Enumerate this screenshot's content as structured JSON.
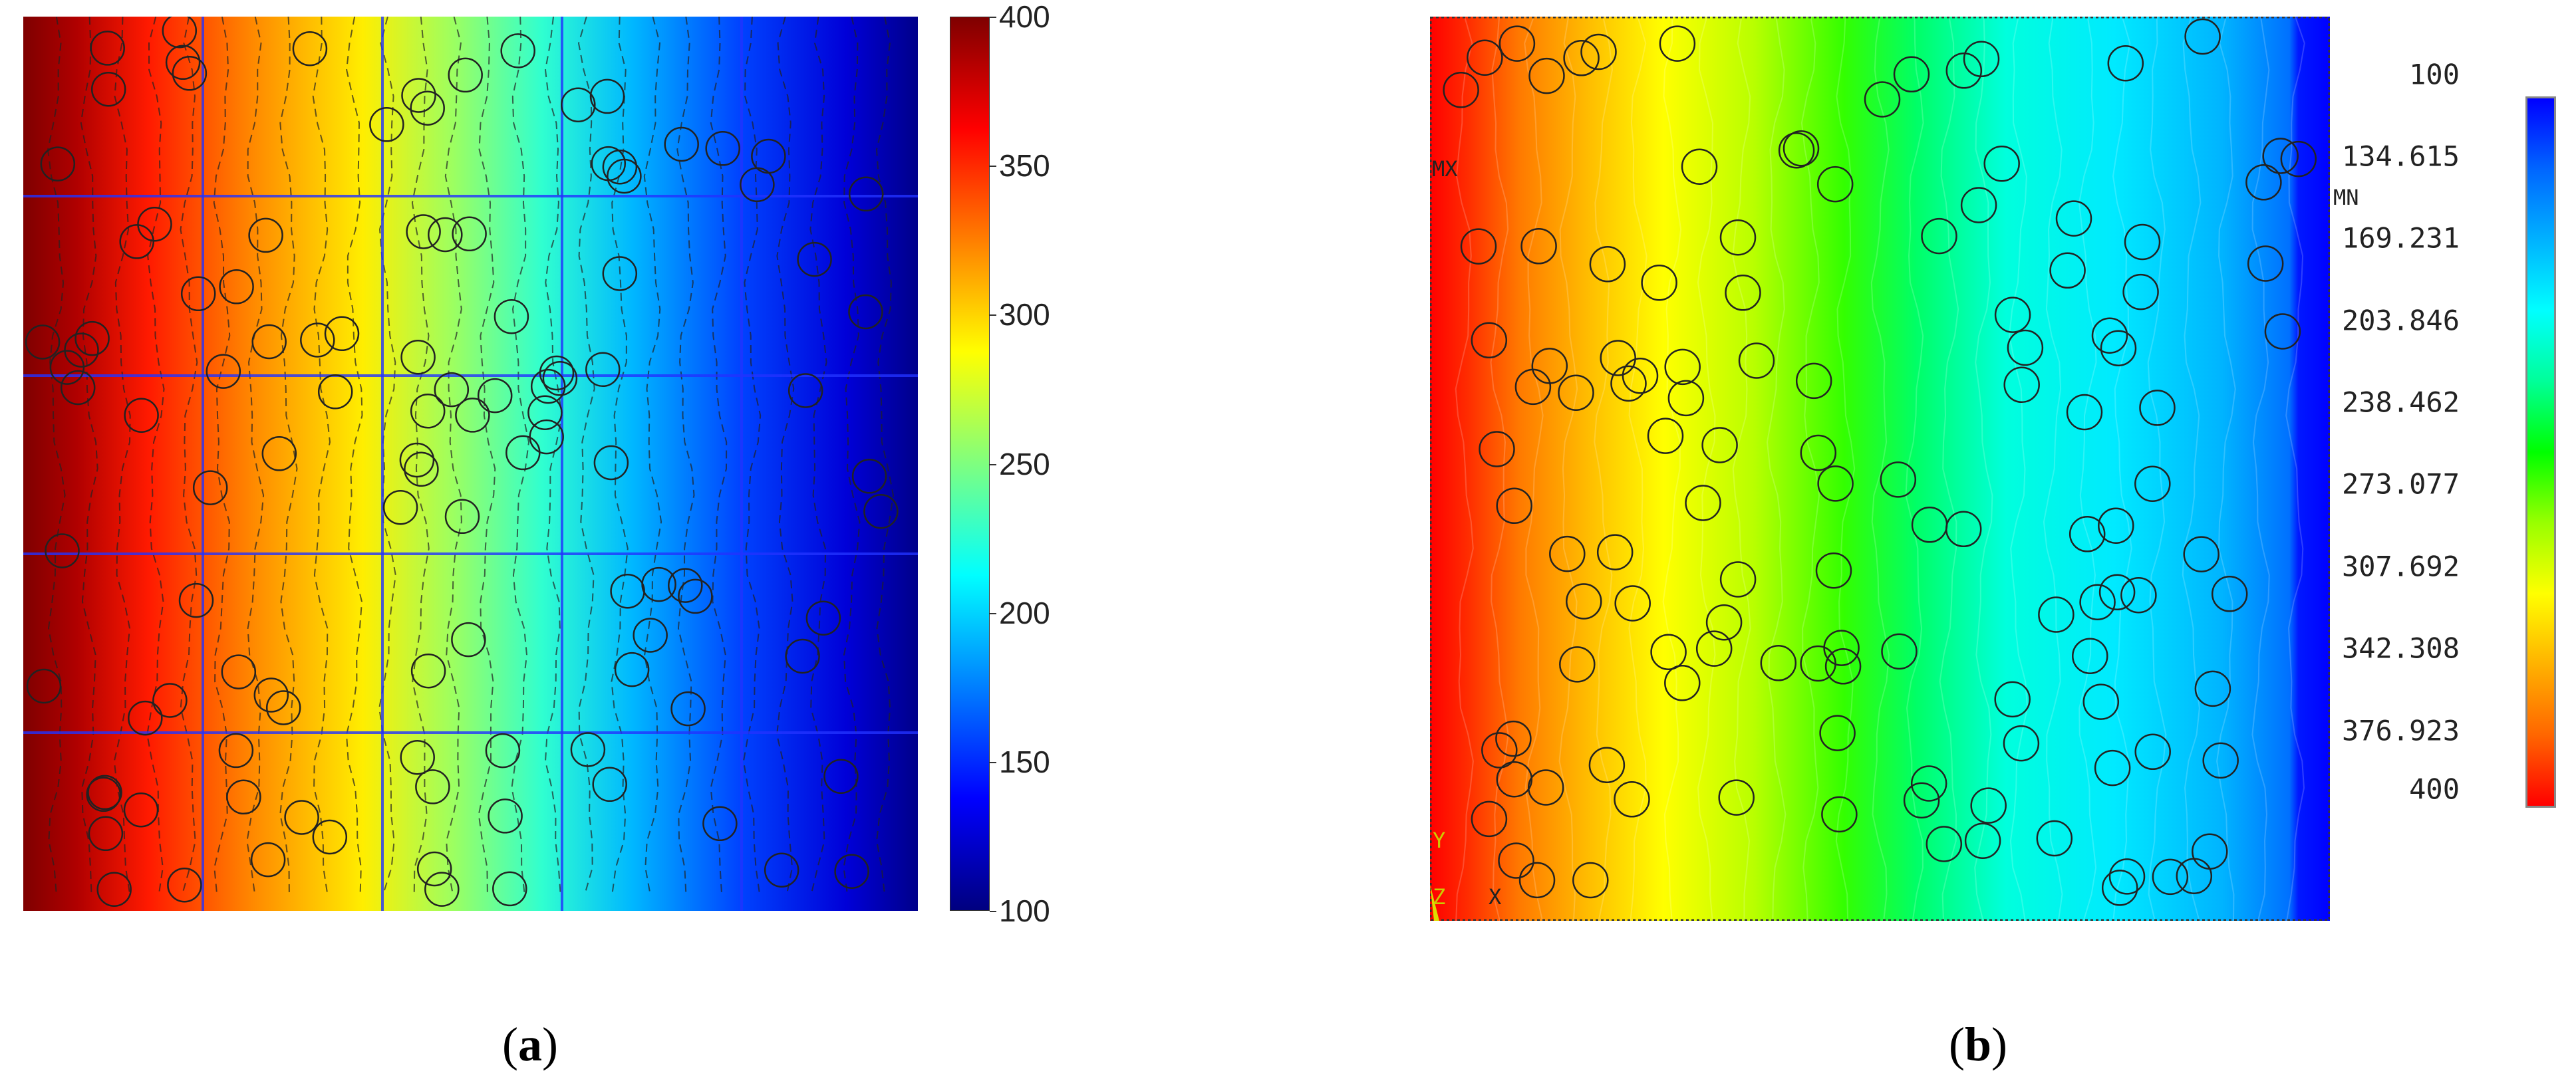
{
  "panel_a": {
    "colorbar_ticks": [
      "400",
      "350",
      "300",
      "250",
      "200",
      "150",
      "100"
    ],
    "caption_letter": "a"
  },
  "panel_b": {
    "colorbar_ticks": [
      "100",
      "134.615",
      "169.231",
      "203.846",
      "238.462",
      "273.077",
      "307.692",
      "342.308",
      "376.923",
      "400"
    ],
    "max_marker": "MX",
    "min_marker": "MN",
    "axis_y": "Y",
    "axis_z": "Z",
    "axis_x": "X",
    "caption_letter": "b"
  },
  "colors": {
    "jet": [
      "#00007f",
      "#0000ff",
      "#007fff",
      "#00ffff",
      "#7fff7f",
      "#ffff00",
      "#ff7f00",
      "#ff0000",
      "#7f0000"
    ],
    "ansys": [
      "#0000ff",
      "#0066ff",
      "#00b2ff",
      "#00ffff",
      "#00ff99",
      "#00ff00",
      "#99ff00",
      "#ffff00",
      "#ffb200",
      "#ff6600",
      "#ff0000"
    ]
  }
}
